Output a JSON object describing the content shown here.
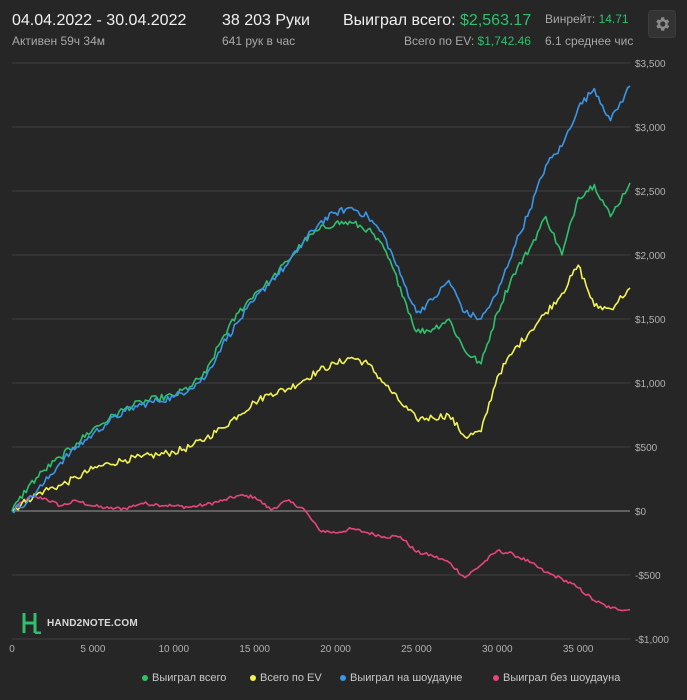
{
  "header": {
    "date_range": "04.04.2022 - 30.04.2022",
    "active_time": "Активен 59ч 34м",
    "hands": "38 203 Руки",
    "hands_per_hour": "641 рук в час",
    "total_won_label": "Выиграл всего:",
    "total_won_value": "$2,563.17",
    "ev_label": "Всего по EV:",
    "ev_value": "$1,742.46",
    "winrate_label": "Винрейт:",
    "winrate_value": "14.71",
    "avg_text": "6.1 среднее чис"
  },
  "settings_icon": "gear-icon",
  "logo": {
    "icon": "h2n-logo-icon",
    "text": "HAND2NOTE.COM"
  },
  "colors": {
    "total": "#2fc06e",
    "ev": "#f2f252",
    "showdown": "#3a96e8",
    "non_showdown": "#e6457a",
    "background": "#262626",
    "grid": "#3d3d3d",
    "zero_line": "#9a9a9a"
  },
  "chart_data": {
    "type": "line",
    "xlim": [
      0,
      38203
    ],
    "ylim": [
      -1000,
      3500
    ],
    "x_ticks": [
      0,
      5000,
      10000,
      15000,
      20000,
      25000,
      30000,
      35000
    ],
    "x_tick_labels": [
      "0",
      "5 000",
      "10 000",
      "15 000",
      "20 000",
      "25 000",
      "30 000",
      "35 000"
    ],
    "y_ticks": [
      3500,
      3000,
      2500,
      2000,
      1500,
      1000,
      500,
      0,
      -500,
      -1000
    ],
    "y_tick_labels": [
      "$3,500",
      "$3,000",
      "$2,500",
      "$2,000",
      "$1,500",
      "$1,000",
      "$500",
      "$0",
      "-$500",
      "-$1,000"
    ],
    "y_axis_position": "right",
    "grid": true,
    "legend_position": "bottom",
    "x": [
      0,
      1000,
      2000,
      3000,
      4000,
      5000,
      6000,
      7000,
      8000,
      9000,
      10000,
      11000,
      12000,
      13000,
      14000,
      15000,
      16000,
      17000,
      18000,
      19000,
      20000,
      21000,
      22000,
      23000,
      24000,
      25000,
      26000,
      27000,
      28000,
      29000,
      30000,
      31000,
      32000,
      33000,
      34000,
      35000,
      36000,
      37000,
      38203
    ],
    "series": [
      {
        "name": "Выиграл всего",
        "key": "total",
        "values": [
          0,
          190,
          320,
          420,
          530,
          640,
          720,
          800,
          850,
          880,
          900,
          970,
          1080,
          1350,
          1550,
          1700,
          1800,
          1950,
          2100,
          2200,
          2250,
          2250,
          2200,
          2050,
          1750,
          1400,
          1420,
          1500,
          1250,
          1150,
          1550,
          1850,
          2050,
          2300,
          2000,
          2450,
          2550,
          2300,
          2563
        ]
      },
      {
        "name": "Всего по EV",
        "key": "ev",
        "values": [
          0,
          90,
          160,
          200,
          260,
          330,
          370,
          400,
          420,
          440,
          460,
          500,
          570,
          650,
          750,
          850,
          920,
          950,
          1020,
          1100,
          1150,
          1200,
          1150,
          1000,
          850,
          720,
          730,
          750,
          580,
          620,
          1050,
          1250,
          1400,
          1550,
          1700,
          1920,
          1600,
          1580,
          1742
        ]
      },
      {
        "name": "Выиграл на шоудауне",
        "key": "showdown",
        "values": [
          0,
          80,
          220,
          380,
          500,
          600,
          700,
          780,
          830,
          860,
          890,
          960,
          1050,
          1300,
          1480,
          1650,
          1800,
          1920,
          2100,
          2250,
          2330,
          2370,
          2300,
          2150,
          1850,
          1550,
          1650,
          1800,
          1550,
          1500,
          1700,
          2050,
          2350,
          2700,
          2850,
          3150,
          3300,
          3050,
          3320
        ]
      },
      {
        "name": "Выиграл без шоудауна",
        "key": "non_showdown",
        "values": [
          0,
          105,
          100,
          40,
          80,
          40,
          20,
          20,
          60,
          50,
          40,
          30,
          50,
          80,
          120,
          110,
          10,
          80,
          20,
          -150,
          -170,
          -140,
          -170,
          -200,
          -200,
          -320,
          -350,
          -400,
          -520,
          -420,
          -310,
          -340,
          -400,
          -480,
          -530,
          -600,
          -700,
          -760,
          -770
        ]
      }
    ]
  },
  "legend": [
    {
      "label": "Выиграл всего",
      "key": "total"
    },
    {
      "label": "Всего по EV",
      "key": "ev"
    },
    {
      "label": "Выиграл на шоудауне",
      "key": "showdown"
    },
    {
      "label": "Выиграл без шоудауна",
      "key": "non_showdown"
    }
  ]
}
